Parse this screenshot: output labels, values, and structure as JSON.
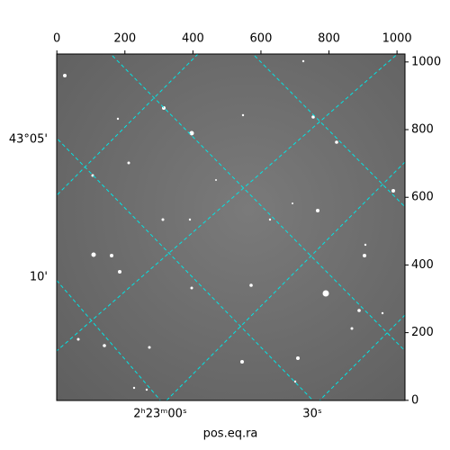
{
  "chart_data": {
    "type": "image",
    "xlabel": "pos.eq.ra",
    "xlim": [
      -0.5,
      1023.5
    ],
    "xticks": [
      0,
      200,
      400,
      600,
      800,
      1000
    ],
    "ylim": [
      -0.5,
      1023.5
    ],
    "yticks": [
      0,
      200,
      400,
      600,
      800,
      1000
    ],
    "world_xtick_labels": [
      "2ʰ23ᵐ00ˢ",
      "30ˢ"
    ],
    "world_ytick_labels": [
      "43°05'",
      "10'"
    ],
    "grid_color": "#00e5e5"
  }
}
